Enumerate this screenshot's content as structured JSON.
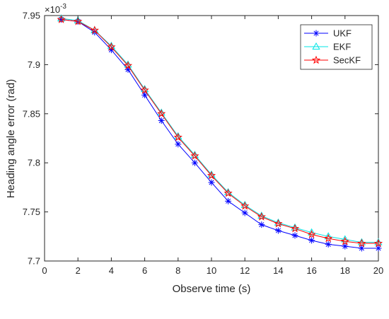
{
  "chart_data": {
    "type": "line",
    "xlabel": "Observe time (s)",
    "ylabel": "Heading angle error (rad)",
    "y_exponent_label": "×10",
    "y_exponent": "-3",
    "xlim": [
      0,
      20
    ],
    "ylim": [
      7.7,
      7.95
    ],
    "x_ticks": [
      0,
      2,
      4,
      6,
      8,
      10,
      12,
      14,
      16,
      18,
      20
    ],
    "y_ticks": [
      7.7,
      7.75,
      7.8,
      7.85,
      7.9,
      7.95
    ],
    "x_tick_labels": [
      "0",
      "2",
      "4",
      "6",
      "8",
      "10",
      "12",
      "14",
      "16",
      "18",
      "20"
    ],
    "y_tick_labels": [
      "7.7",
      "7.75",
      "7.8",
      "7.85",
      "7.9",
      "7.95"
    ],
    "grid": false,
    "legend_position": "top-right",
    "x": [
      1,
      2,
      3,
      4,
      5,
      6,
      7,
      8,
      9,
      10,
      11,
      12,
      13,
      14,
      15,
      16,
      17,
      18,
      19,
      20
    ],
    "series": [
      {
        "name": "UKF",
        "color": "#0000ff",
        "marker": "asterisk",
        "values": [
          7.946,
          7.944,
          7.933,
          7.915,
          7.895,
          7.869,
          7.843,
          7.819,
          7.8,
          7.78,
          7.761,
          7.749,
          7.737,
          7.731,
          7.726,
          7.721,
          7.717,
          7.715,
          7.713,
          7.713
        ]
      },
      {
        "name": "EKF",
        "color": "#00e5e5",
        "marker": "triangle",
        "values": [
          7.947,
          7.945,
          7.935,
          7.919,
          7.9,
          7.875,
          7.851,
          7.827,
          7.808,
          7.788,
          7.77,
          7.757,
          7.746,
          7.739,
          7.734,
          7.729,
          7.725,
          7.722,
          7.719,
          7.719
        ]
      },
      {
        "name": "SecKF",
        "color": "#ff0000",
        "marker": "star",
        "values": [
          7.946,
          7.944,
          7.935,
          7.918,
          7.899,
          7.874,
          7.85,
          7.826,
          7.807,
          7.787,
          7.769,
          7.756,
          7.745,
          7.738,
          7.733,
          7.727,
          7.723,
          7.72,
          7.718,
          7.718
        ]
      }
    ]
  }
}
